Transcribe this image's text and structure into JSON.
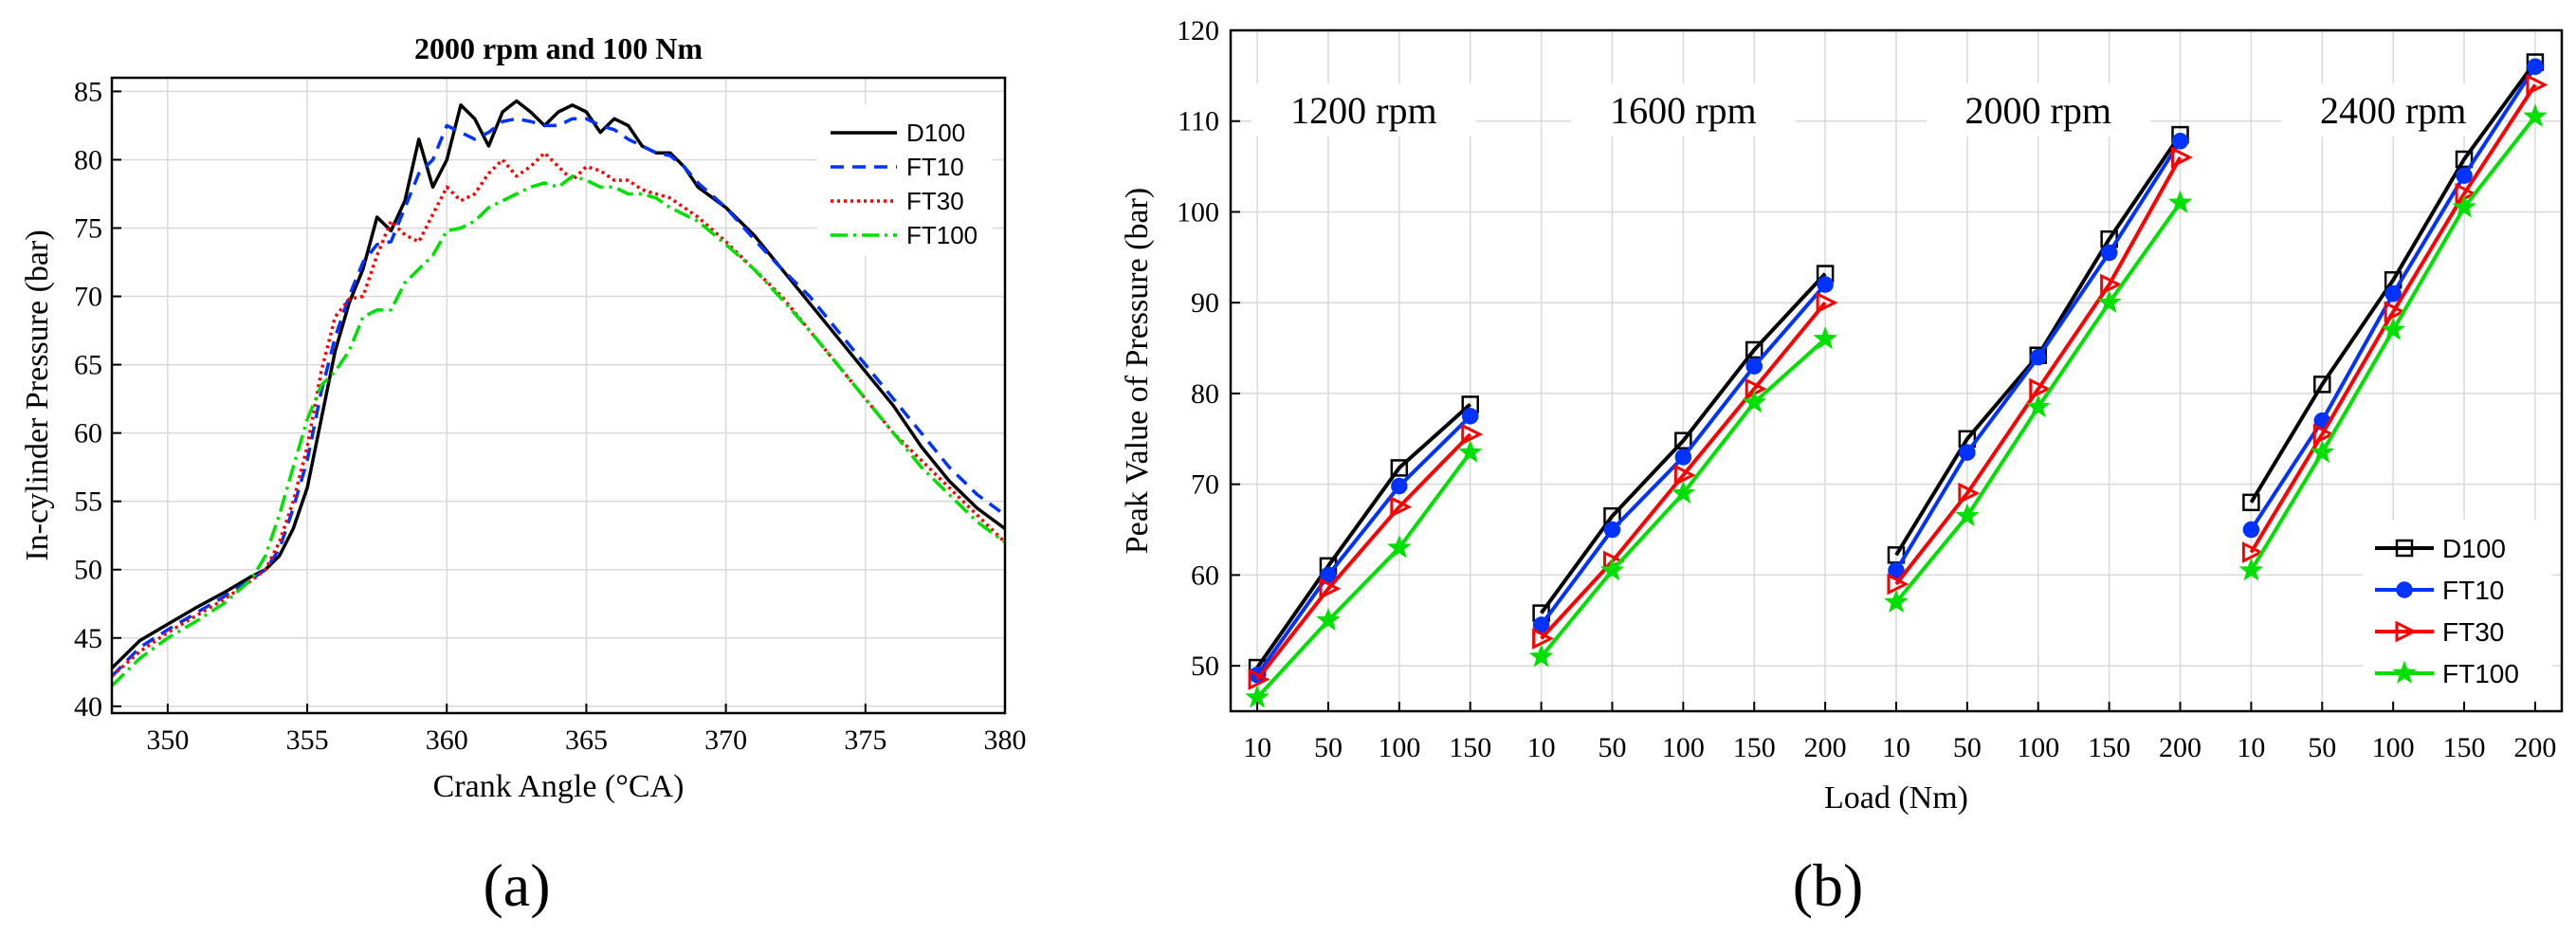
{
  "chart_data": [
    {
      "type": "line",
      "panel_label": "(a)",
      "title": "2000 rpm and 100 Nm",
      "xlabel": "Crank Angle (°CA)",
      "ylabel": "In-cylinder Pressure (bar)",
      "xlim": [
        348,
        380
      ],
      "ylim": [
        39.5,
        86
      ],
      "xticks": [
        350,
        355,
        360,
        365,
        370,
        375,
        380
      ],
      "yticks": [
        40,
        45,
        50,
        55,
        60,
        65,
        70,
        75,
        80,
        85
      ],
      "grid": true,
      "legend_position": "top-right",
      "series": [
        {
          "name": "D100",
          "color": "#000000",
          "dash": "",
          "x": [
            348,
            349,
            350,
            351,
            352,
            353,
            353.5,
            354,
            354.5,
            355,
            355.5,
            356,
            356.5,
            357,
            357.5,
            358,
            358.5,
            359,
            359.5,
            360,
            360.5,
            361,
            361.5,
            362,
            362.5,
            363,
            363.5,
            364,
            364.5,
            365,
            365.5,
            366,
            366.5,
            367,
            367.5,
            368,
            368.5,
            369,
            370,
            371,
            372,
            373,
            374,
            375,
            376,
            377,
            378,
            379,
            380
          ],
          "y": [
            42.8,
            44.8,
            46,
            47.2,
            48.3,
            49.5,
            50,
            51,
            53,
            56,
            61,
            66,
            69.5,
            72,
            75.8,
            74.8,
            77,
            81.5,
            78,
            80,
            84,
            83,
            81,
            83.5,
            84.3,
            83.5,
            82.5,
            83.5,
            84,
            83.5,
            82,
            83,
            82.5,
            81,
            80.5,
            80.5,
            79.5,
            78,
            76.5,
            74.5,
            72,
            69.5,
            67,
            64.5,
            62,
            59,
            56.5,
            54.5,
            53
          ]
        },
        {
          "name": "FT10",
          "color": "#0033ff",
          "dash": "14,9",
          "x": [
            348,
            349,
            350,
            351,
            352,
            353,
            353.5,
            354,
            354.5,
            355,
            355.5,
            356,
            356.5,
            357,
            357.5,
            358,
            358.5,
            359,
            359.5,
            360,
            360.5,
            361,
            361.5,
            362,
            362.5,
            363,
            363.5,
            364,
            364.5,
            365,
            365.5,
            366,
            366.5,
            367,
            367.5,
            368,
            368.5,
            369,
            370,
            371,
            372,
            373,
            374,
            375,
            376,
            377,
            378,
            379,
            380
          ],
          "y": [
            42.2,
            44.3,
            45.6,
            46.8,
            48,
            49.3,
            50,
            51.5,
            54.5,
            58,
            63,
            67,
            70,
            72.5,
            73.8,
            74,
            76.5,
            79,
            80,
            82.5,
            82,
            81.5,
            82,
            82.8,
            83,
            82.8,
            82.5,
            82.5,
            83,
            83,
            82.5,
            82.2,
            81.5,
            81,
            80.5,
            80.3,
            79.5,
            78.3,
            76.5,
            74.2,
            72,
            70,
            67.5,
            65,
            62.5,
            60,
            57.5,
            55.5,
            54
          ]
        },
        {
          "name": "FT30",
          "color": "#ff0000",
          "dash": "3,4",
          "x": [
            348,
            349,
            350,
            351,
            352,
            353,
            353.5,
            354,
            354.5,
            355,
            355.5,
            356,
            356.5,
            357,
            357.5,
            358,
            358.5,
            359,
            359.5,
            360,
            360.5,
            361,
            361.5,
            362,
            362.5,
            363,
            363.5,
            364,
            364.5,
            365,
            365.5,
            366,
            366.5,
            367,
            367.5,
            368,
            368.5,
            369,
            370,
            371,
            372,
            373,
            374,
            375,
            376,
            377,
            378,
            379,
            380
          ],
          "y": [
            42.2,
            44,
            45.4,
            46.6,
            47.8,
            49.2,
            50,
            52,
            55,
            59,
            64.5,
            68.5,
            69.8,
            70,
            73,
            75.5,
            74.5,
            74,
            76,
            78,
            77,
            77.5,
            79,
            80,
            78.8,
            79.5,
            80.5,
            79.5,
            78.5,
            79.5,
            79.2,
            78.5,
            78.5,
            77.8,
            77.5,
            77.2,
            76.5,
            75.8,
            74,
            72,
            70,
            67.5,
            65,
            62.5,
            60,
            58,
            56,
            54,
            52
          ]
        },
        {
          "name": "FT100",
          "color": "#00e000",
          "dash": "18,6,3,6",
          "x": [
            348,
            349,
            350,
            351,
            352,
            353,
            353.5,
            354,
            354.5,
            355,
            355.5,
            356,
            356.5,
            357,
            357.5,
            358,
            358.5,
            359,
            359.5,
            360,
            360.5,
            361,
            361.5,
            362,
            362.5,
            363,
            363.5,
            364,
            364.5,
            365,
            365.5,
            366,
            366.5,
            367,
            367.5,
            368,
            368.5,
            369,
            370,
            371,
            372,
            373,
            374,
            375,
            376,
            377,
            378,
            379,
            380
          ],
          "y": [
            41.5,
            43.5,
            45,
            46.2,
            47.5,
            49.3,
            51,
            54,
            57.5,
            61,
            63.5,
            64.5,
            66,
            68.5,
            69,
            69,
            71,
            72,
            73,
            74.8,
            75,
            75.5,
            76.5,
            77,
            77.5,
            78,
            78.3,
            78,
            78.8,
            78.5,
            78,
            78,
            77.5,
            77.5,
            77.2,
            76.5,
            76,
            75.5,
            73.8,
            72,
            69.8,
            67.5,
            65,
            62.5,
            60,
            57.5,
            55.5,
            53.5,
            52
          ]
        }
      ]
    },
    {
      "type": "line",
      "panel_label": "(b)",
      "xlabel": "Load (Nm)",
      "ylabel": "Peak Value of Pressure (bar)",
      "ylim": [
        45,
        120
      ],
      "yticks": [
        50,
        60,
        70,
        80,
        90,
        100,
        110,
        120
      ],
      "grid": true,
      "legend_position": "bottom-right",
      "groups": [
        {
          "label": "1200 rpm",
          "loads": [
            "10",
            "50",
            "100",
            "150"
          ]
        },
        {
          "label": "1600 rpm",
          "loads": [
            "10",
            "50",
            "100",
            "150",
            "200"
          ]
        },
        {
          "label": "2000 rpm",
          "loads": [
            "10",
            "50",
            "100",
            "150",
            "200"
          ]
        },
        {
          "label": "2400 rpm",
          "loads": [
            "10",
            "50",
            "100",
            "150",
            "200"
          ]
        }
      ],
      "series": [
        {
          "name": "D100",
          "color": "#000000",
          "marker": "square-open",
          "values": [
            [
              49.8,
              61,
              71.8,
              78.8
            ],
            [
              55.8,
              66.5,
              74.8,
              84.8,
              93.2
            ],
            [
              62.2,
              75,
              84.2,
              97,
              108.5
            ],
            [
              68,
              81,
              92.5,
              105.8,
              116.5
            ]
          ]
        },
        {
          "name": "FT10",
          "color": "#0033ff",
          "marker": "circle",
          "values": [
            [
              49,
              60,
              69.8,
              77.5
            ],
            [
              54.5,
              65,
              73,
              83,
              92
            ],
            [
              60.5,
              73.5,
              84,
              95.5,
              107.8
            ],
            [
              65,
              77,
              91,
              104,
              116
            ]
          ]
        },
        {
          "name": "FT30",
          "color": "#ff0000",
          "marker": "triangle-right-open",
          "values": [
            [
              48.5,
              58.5,
              67.5,
              75.5
            ],
            [
              53,
              61.5,
              71,
              80.5,
              90
            ],
            [
              59,
              69,
              80.5,
              92,
              106
            ],
            [
              62.5,
              75.5,
              89,
              102,
              114
            ]
          ]
        },
        {
          "name": "FT100",
          "color": "#00e000",
          "marker": "star",
          "values": [
            [
              46.5,
              55,
              63,
              73.5
            ],
            [
              51,
              60.5,
              69,
              79,
              86
            ],
            [
              57,
              66.5,
              78.5,
              90,
              101
            ],
            [
              60.5,
              73.5,
              87,
              100.5,
              110.5
            ]
          ]
        }
      ]
    }
  ]
}
